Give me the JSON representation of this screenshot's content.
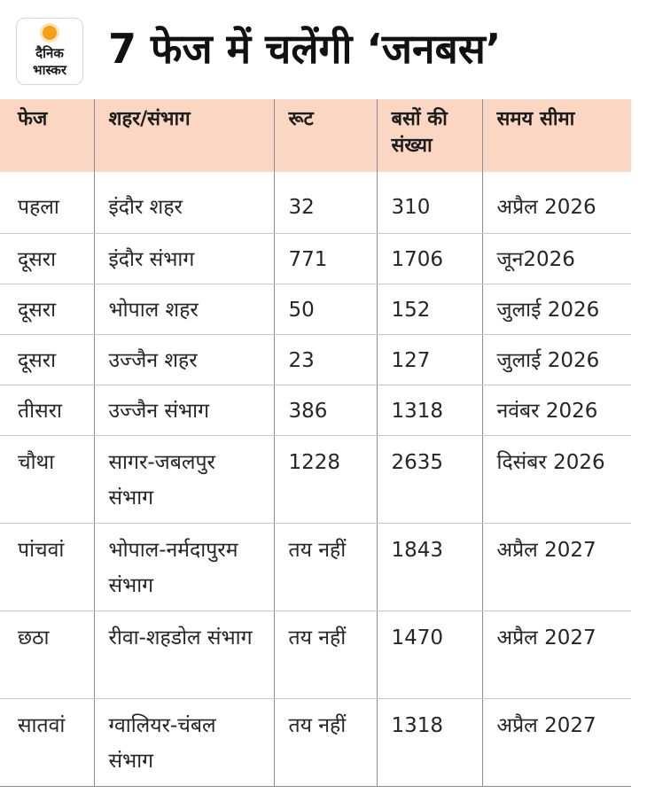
{
  "brand": {
    "logo_line1": "दैनिक",
    "logo_line2": "भास्कर"
  },
  "headline": "7 फेज में चलेंगी ‘जनबस’",
  "table": {
    "headers": [
      "फेज",
      "शहर/संभाग",
      "रूट",
      "बसों की संख्या",
      "समय सीमा"
    ],
    "rows": [
      [
        "पहला",
        "इंदौर शहर",
        "32",
        "310",
        "अप्रैल 2026"
      ],
      [
        "दूसरा",
        "इंदौर संभाग",
        "771",
        "1706",
        "जून2026"
      ],
      [
        "दूसरा",
        "भोपाल शहर",
        "50",
        "152",
        "जुलाई 2026"
      ],
      [
        "दूसरा",
        "उज्जैन शहर",
        "23",
        "127",
        "जुलाई 2026"
      ],
      [
        "तीसरा",
        "उज्जैन संभाग",
        "386",
        "1318",
        "नवंबर 2026"
      ],
      [
        "चौथा",
        "सागर-जबलपुर संभाग",
        "1228",
        "2635",
        "दिसंबर 2026"
      ],
      [
        "पांचवां",
        "भोपाल-नर्मदापुरम संभाग",
        "तय नहीं",
        "1843",
        "अप्रैल 2027"
      ],
      [
        "छठा",
        "रीवा-शहडोल संभाग",
        "तय नहीं",
        "1470",
        "अप्रैल 2027"
      ],
      [
        "सातवां",
        "ग्वालियर-चंबल संभाग",
        "तय नहीं",
        "1318",
        "अप्रैल 2027"
      ]
    ]
  },
  "colors": {
    "header_background": "#fad6c3",
    "logo_sun": "#f6a01a"
  }
}
